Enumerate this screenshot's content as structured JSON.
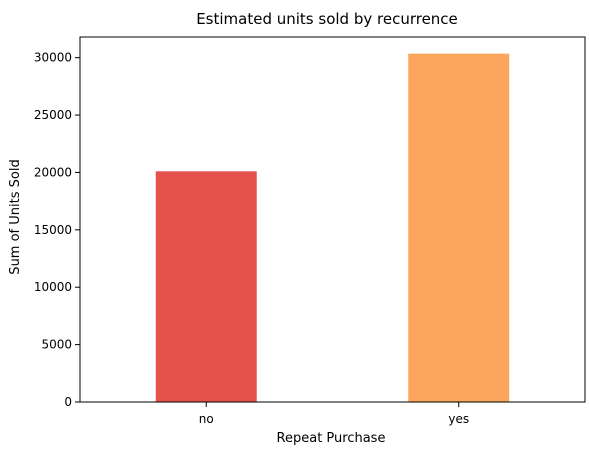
{
  "chart_data": {
    "type": "bar",
    "title": "Estimated units sold  by recurrence",
    "xlabel": "Repeat Purchase",
    "ylabel": "Sum of Units Sold",
    "categories": [
      "no",
      "yes"
    ],
    "values": [
      20100,
      30350
    ],
    "colors": [
      "#e3534c",
      "#fca65d"
    ],
    "ylim": [
      0,
      31800
    ],
    "yticks": [
      0,
      5000,
      10000,
      15000,
      20000,
      25000,
      30000
    ],
    "grid": false,
    "legend": "none"
  }
}
